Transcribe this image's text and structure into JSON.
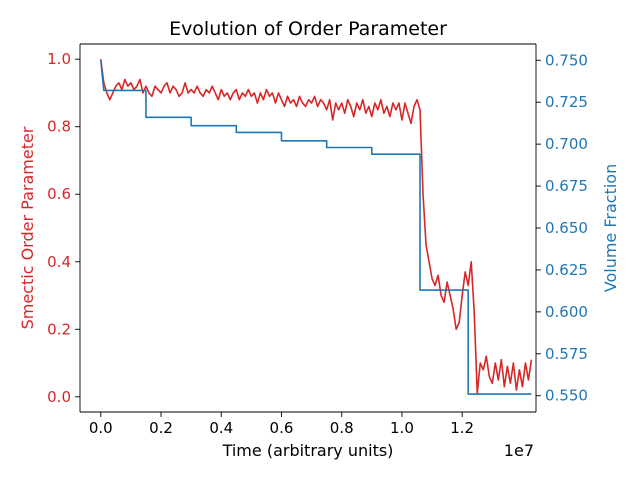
{
  "chart_data": {
    "type": "line",
    "title": "Evolution of Order Parameter",
    "xlabel": "Time (arbitrary units)",
    "x_offset_label": "1e7",
    "x_scale": 10000000,
    "xlim": [
      -0.069,
      1.4451
    ],
    "xticks": [
      0.0,
      0.2,
      0.4,
      0.6,
      0.8,
      1.0,
      1.2
    ],
    "xtick_labels": [
      "0.0",
      "0.2",
      "0.4",
      "0.6",
      "0.8",
      "1.0",
      "1.2"
    ],
    "left_axis": {
      "label": "Smectic Order Parameter",
      "color": "#d62728",
      "ylim": [
        -0.045,
        1.045
      ],
      "ticks": [
        0.0,
        0.2,
        0.4,
        0.6,
        0.8,
        1.0
      ],
      "tick_labels": [
        "0.0",
        "0.2",
        "0.4",
        "0.6",
        "0.8",
        "1.0"
      ]
    },
    "right_axis": {
      "label": "Volume Fraction",
      "color": "#1f77b4",
      "ylim": [
        0.5403,
        0.7597
      ],
      "ticks": [
        0.55,
        0.575,
        0.6,
        0.625,
        0.65,
        0.675,
        0.7,
        0.725,
        0.75
      ],
      "tick_labels": [
        "0.550",
        "0.575",
        "0.600",
        "0.625",
        "0.650",
        "0.675",
        "0.700",
        "0.725",
        "0.750"
      ]
    },
    "series": [
      {
        "axis": "left",
        "color": "#d62728",
        "points": [
          [
            0.0,
            1.0
          ],
          [
            0.01,
            0.93
          ],
          [
            0.02,
            0.9
          ],
          [
            0.03,
            0.88
          ],
          [
            0.04,
            0.9
          ],
          [
            0.05,
            0.92
          ],
          [
            0.06,
            0.93
          ],
          [
            0.07,
            0.91
          ],
          [
            0.08,
            0.94
          ],
          [
            0.09,
            0.92
          ],
          [
            0.1,
            0.93
          ],
          [
            0.11,
            0.91
          ],
          [
            0.12,
            0.92
          ],
          [
            0.13,
            0.94
          ],
          [
            0.14,
            0.9
          ],
          [
            0.15,
            0.92
          ],
          [
            0.16,
            0.9
          ],
          [
            0.17,
            0.89
          ],
          [
            0.18,
            0.92
          ],
          [
            0.19,
            0.91
          ],
          [
            0.2,
            0.9
          ],
          [
            0.21,
            0.92
          ],
          [
            0.22,
            0.93
          ],
          [
            0.23,
            0.9
          ],
          [
            0.24,
            0.92
          ],
          [
            0.25,
            0.91
          ],
          [
            0.26,
            0.89
          ],
          [
            0.27,
            0.9
          ],
          [
            0.28,
            0.93
          ],
          [
            0.29,
            0.9
          ],
          [
            0.3,
            0.91
          ],
          [
            0.31,
            0.9
          ],
          [
            0.32,
            0.92
          ],
          [
            0.33,
            0.9
          ],
          [
            0.34,
            0.89
          ],
          [
            0.35,
            0.91
          ],
          [
            0.36,
            0.9
          ],
          [
            0.37,
            0.92
          ],
          [
            0.38,
            0.9
          ],
          [
            0.39,
            0.88
          ],
          [
            0.4,
            0.91
          ],
          [
            0.41,
            0.89
          ],
          [
            0.42,
            0.9
          ],
          [
            0.43,
            0.88
          ],
          [
            0.44,
            0.9
          ],
          [
            0.45,
            0.91
          ],
          [
            0.46,
            0.88
          ],
          [
            0.47,
            0.9
          ],
          [
            0.48,
            0.89
          ],
          [
            0.49,
            0.91
          ],
          [
            0.5,
            0.89
          ],
          [
            0.51,
            0.9
          ],
          [
            0.52,
            0.87
          ],
          [
            0.53,
            0.9
          ],
          [
            0.54,
            0.88
          ],
          [
            0.55,
            0.91
          ],
          [
            0.56,
            0.89
          ],
          [
            0.57,
            0.9
          ],
          [
            0.58,
            0.87
          ],
          [
            0.59,
            0.9
          ],
          [
            0.6,
            0.88
          ],
          [
            0.61,
            0.86
          ],
          [
            0.62,
            0.89
          ],
          [
            0.63,
            0.87
          ],
          [
            0.64,
            0.88
          ],
          [
            0.65,
            0.86
          ],
          [
            0.66,
            0.89
          ],
          [
            0.67,
            0.87
          ],
          [
            0.68,
            0.86
          ],
          [
            0.69,
            0.88
          ],
          [
            0.7,
            0.87
          ],
          [
            0.71,
            0.89
          ],
          [
            0.72,
            0.86
          ],
          [
            0.73,
            0.88
          ],
          [
            0.74,
            0.87
          ],
          [
            0.75,
            0.85
          ],
          [
            0.76,
            0.88
          ],
          [
            0.77,
            0.82
          ],
          [
            0.78,
            0.87
          ],
          [
            0.79,
            0.85
          ],
          [
            0.8,
            0.87
          ],
          [
            0.81,
            0.84
          ],
          [
            0.82,
            0.88
          ],
          [
            0.83,
            0.86
          ],
          [
            0.84,
            0.83
          ],
          [
            0.85,
            0.87
          ],
          [
            0.86,
            0.85
          ],
          [
            0.87,
            0.88
          ],
          [
            0.88,
            0.84
          ],
          [
            0.89,
            0.86
          ],
          [
            0.9,
            0.83
          ],
          [
            0.91,
            0.87
          ],
          [
            0.92,
            0.85
          ],
          [
            0.93,
            0.88
          ],
          [
            0.94,
            0.84
          ],
          [
            0.95,
            0.86
          ],
          [
            0.96,
            0.83
          ],
          [
            0.97,
            0.87
          ],
          [
            0.98,
            0.85
          ],
          [
            0.99,
            0.87
          ],
          [
            1.0,
            0.82
          ],
          [
            1.01,
            0.87
          ],
          [
            1.02,
            0.84
          ],
          [
            1.03,
            0.81
          ],
          [
            1.04,
            0.86
          ],
          [
            1.05,
            0.88
          ],
          [
            1.06,
            0.85
          ],
          [
            1.07,
            0.6
          ],
          [
            1.08,
            0.45
          ],
          [
            1.09,
            0.4
          ],
          [
            1.1,
            0.35
          ],
          [
            1.11,
            0.33
          ],
          [
            1.12,
            0.36
          ],
          [
            1.13,
            0.3
          ],
          [
            1.14,
            0.28
          ],
          [
            1.15,
            0.34
          ],
          [
            1.16,
            0.3
          ],
          [
            1.17,
            0.26
          ],
          [
            1.18,
            0.2
          ],
          [
            1.19,
            0.22
          ],
          [
            1.2,
            0.3
          ],
          [
            1.21,
            0.37
          ],
          [
            1.22,
            0.33
          ],
          [
            1.23,
            0.4
          ],
          [
            1.24,
            0.25
          ],
          [
            1.25,
            0.01
          ],
          [
            1.26,
            0.1
          ],
          [
            1.27,
            0.08
          ],
          [
            1.28,
            0.12
          ],
          [
            1.29,
            0.06
          ],
          [
            1.3,
            0.04
          ],
          [
            1.31,
            0.1
          ],
          [
            1.32,
            0.05
          ],
          [
            1.33,
            0.11
          ],
          [
            1.34,
            0.03
          ],
          [
            1.35,
            0.09
          ],
          [
            1.36,
            0.04
          ],
          [
            1.37,
            0.1
          ],
          [
            1.38,
            0.02
          ],
          [
            1.39,
            0.08
          ],
          [
            1.4,
            0.03
          ],
          [
            1.41,
            0.1
          ],
          [
            1.42,
            0.05
          ],
          [
            1.43,
            0.11
          ]
        ]
      },
      {
        "axis": "right",
        "color": "#1f77b4",
        "step": true,
        "points": [
          [
            0.0,
            0.75
          ],
          [
            0.01,
            0.732
          ],
          [
            0.15,
            0.732
          ],
          [
            0.15,
            0.716
          ],
          [
            0.3,
            0.716
          ],
          [
            0.3,
            0.711
          ],
          [
            0.45,
            0.711
          ],
          [
            0.45,
            0.707
          ],
          [
            0.6,
            0.707
          ],
          [
            0.6,
            0.702
          ],
          [
            0.75,
            0.702
          ],
          [
            0.75,
            0.698
          ],
          [
            0.9,
            0.698
          ],
          [
            0.9,
            0.694
          ],
          [
            1.06,
            0.694
          ],
          [
            1.06,
            0.613
          ],
          [
            1.22,
            0.613
          ],
          [
            1.22,
            0.551
          ],
          [
            1.43,
            0.551
          ]
        ]
      }
    ]
  }
}
